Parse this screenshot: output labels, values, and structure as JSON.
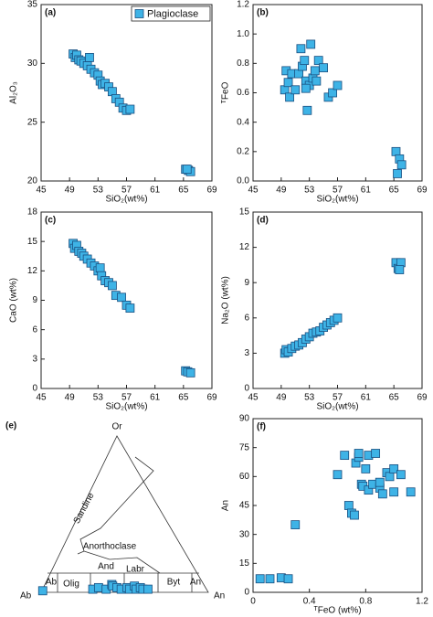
{
  "chart_data": [
    {
      "type": "scatter",
      "label": "(a)",
      "xlabel": "SiO₂(wt%)",
      "ylabel": "Al₂O₃",
      "xlim": [
        45,
        69
      ],
      "xticks": [
        45,
        49,
        53,
        57,
        61,
        65,
        69
      ],
      "ylim": [
        20,
        35
      ],
      "yticks": [
        20,
        25,
        30,
        35
      ],
      "legend": "upper right",
      "x": [
        49.5,
        49.8,
        50,
        50.3,
        50.6,
        51,
        51.5,
        51.8,
        52,
        52.5,
        53,
        53.3,
        53.6,
        54,
        54.5,
        55,
        55.5,
        56,
        56.5,
        57,
        57.5,
        65.3,
        65.7,
        66,
        65.5
      ],
      "series": [
        {
          "name": "Plagioclase",
          "color": "#3eb3e6",
          "values": [
            30.8,
            30.5,
            30.7,
            30.3,
            30.2,
            30,
            29.8,
            30.5,
            29.5,
            29.2,
            29,
            28.5,
            28.2,
            28.3,
            28,
            27.6,
            27,
            26.7,
            26.2,
            26,
            26.1,
            21,
            20.9,
            20.8,
            21
          ]
        }
      ]
    },
    {
      "type": "scatter",
      "label": "(b)",
      "xlabel": "SiO₂(wt%)",
      "ylabel": "ᵀFeO",
      "xlim": [
        45,
        69
      ],
      "xticks": [
        45,
        49,
        53,
        57,
        61,
        65,
        69
      ],
      "ylim": [
        0,
        1.2
      ],
      "yticks": [
        {
          "value": 0,
          "label": "0.0"
        },
        0.2,
        0.4,
        0.6,
        0.8,
        {
          "value": 1,
          "label": "1.0"
        },
        1.2
      ],
      "x": [
        49.5,
        49.7,
        50,
        50.2,
        50.5,
        51,
        51.5,
        51.8,
        52,
        52.3,
        52.5,
        52.7,
        53,
        53.2,
        53.5,
        53.8,
        54,
        54.3,
        55,
        55.7,
        56.3,
        57,
        65.3,
        65.5,
        65.8,
        66.1,
        52.5
      ],
      "series": [
        {
          "color": "#3eb3e6",
          "values": [
            0.62,
            0.75,
            0.67,
            0.57,
            0.73,
            0.62,
            0.73,
            0.9,
            0.78,
            0.82,
            0.68,
            0.48,
            0.65,
            0.93,
            0.7,
            0.75,
            0.68,
            0.82,
            0.77,
            0.57,
            0.6,
            0.65,
            0.2,
            0.05,
            0.15,
            0.11,
            0.63
          ]
        }
      ]
    },
    {
      "type": "scatter",
      "label": "(c)",
      "xlabel": "SiO₂(wt%)",
      "ylabel": "CaO (wt%)",
      "xlim": [
        45,
        69
      ],
      "xticks": [
        45,
        49,
        53,
        57,
        61,
        65,
        69
      ],
      "ylim": [
        0,
        18
      ],
      "yticks": [
        0,
        3,
        6,
        9,
        12,
        15,
        18
      ],
      "x": [
        49.5,
        49.7,
        50,
        50.3,
        50.7,
        51,
        51.5,
        52,
        52.5,
        53,
        53.3,
        53.5,
        54,
        54.5,
        55,
        55.5,
        56.3,
        57,
        57.5,
        65.3,
        65.6,
        66
      ],
      "series": [
        {
          "color": "#3eb3e6",
          "values": [
            14.8,
            14.3,
            14.6,
            14,
            13.8,
            13.5,
            13.2,
            12.8,
            12.5,
            12,
            12.3,
            11.5,
            11,
            10.8,
            10.5,
            9.5,
            9.3,
            8.5,
            8.2,
            1.8,
            1.7,
            1.6
          ]
        }
      ]
    },
    {
      "type": "scatter",
      "label": "(d)",
      "xlabel": "SiO₂(wt%)",
      "ylabel": "Na₂O (wt%)",
      "xlim": [
        45,
        69
      ],
      "xticks": [
        45,
        49,
        53,
        57,
        61,
        65,
        69
      ],
      "ylim": [
        0,
        15
      ],
      "yticks": [
        0,
        3,
        6,
        9,
        12,
        15
      ],
      "x": [
        49.5,
        49.7,
        50,
        50.5,
        51,
        51.5,
        52,
        52.5,
        53,
        53.5,
        54,
        54.5,
        55,
        55.5,
        56,
        56.5,
        57,
        65.3,
        65.6,
        66,
        65.8
      ],
      "series": [
        {
          "color": "#3eb3e6",
          "values": [
            3,
            3.3,
            3.1,
            3.4,
            3.6,
            3.7,
            3.9,
            4.2,
            4.4,
            4.7,
            4.8,
            4.9,
            5.2,
            5.4,
            5.6,
            5.8,
            6,
            10.7,
            10.2,
            10.7,
            10.1
          ]
        }
      ]
    },
    {
      "type": "ternary",
      "label": "(e)",
      "vertices": [
        "Or",
        "Ab",
        "An"
      ],
      "fields": [
        "Sandine",
        "Anorthoclase",
        "And",
        "Labr",
        "Olig",
        "Ab",
        "Byt",
        "An"
      ],
      "color": "#3eb3e6",
      "an": [
        0.5,
        30,
        33,
        38,
        40,
        41,
        44,
        47,
        50,
        52,
        54,
        56,
        58,
        60,
        63
      ],
      "or": [
        1,
        2,
        3,
        2,
        5,
        4,
        3,
        2,
        3,
        2,
        4,
        2,
        3,
        2,
        2
      ]
    },
    {
      "type": "scatter",
      "label": "(f)",
      "xlabel": "ᵀFeO (wt%)",
      "ylabel": "An",
      "xlim": [
        0,
        1.2
      ],
      "xticks": [
        0,
        0.4,
        0.8,
        1.2
      ],
      "ylim": [
        0,
        90
      ],
      "yticks": [
        0,
        15,
        30,
        45,
        60,
        75,
        90
      ],
      "x": [
        0.05,
        0.12,
        0.2,
        0.25,
        0.3,
        0.6,
        0.65,
        0.68,
        0.7,
        0.72,
        0.73,
        0.75,
        0.75,
        0.77,
        0.78,
        0.8,
        0.82,
        0.82,
        0.85,
        0.9,
        0.92,
        0.95,
        0.97,
        1.0,
        1.0,
        1.05,
        1.12,
        0.87,
        0.9
      ],
      "series": [
        {
          "color": "#3eb3e6",
          "values": [
            7,
            7,
            7.5,
            7,
            35,
            61,
            71,
            45,
            41,
            40,
            67,
            70,
            72,
            56,
            55,
            64,
            71,
            53,
            56,
            54,
            51,
            62,
            60,
            64,
            52,
            61,
            52,
            72,
            57
          ]
        }
      ]
    }
  ]
}
